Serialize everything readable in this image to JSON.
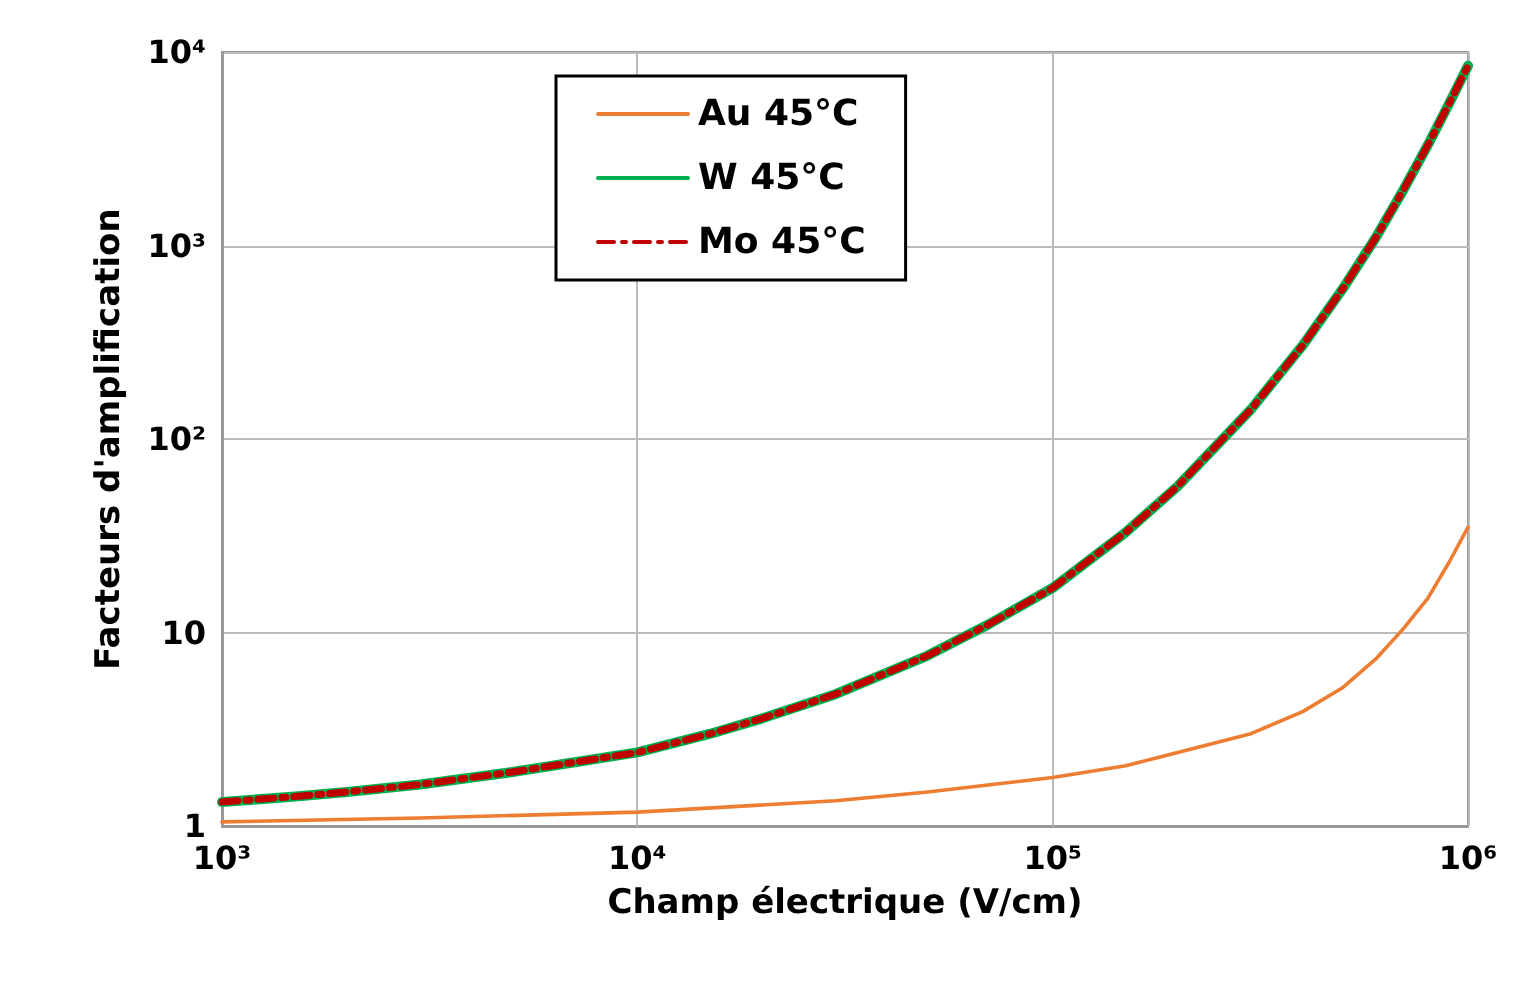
{
  "chart_data": {
    "type": "line",
    "xlabel": "Champ électrique (V/cm)",
    "ylabel": "Facteurs d'amplification",
    "log": "xy",
    "grid": true,
    "legend": "top",
    "xlim": [
      1000,
      1000000
    ],
    "ylim": [
      1,
      10000
    ],
    "xticks": [
      {
        "value": 1000,
        "label": "10³"
      },
      {
        "value": 10000,
        "label": "10⁴"
      },
      {
        "value": 100000,
        "label": "10⁵"
      },
      {
        "value": 1000000,
        "label": "10⁶"
      }
    ],
    "yticks": [
      1,
      10,
      {
        "value": 100,
        "label": "10²"
      },
      {
        "value": 1000,
        "label": "10³"
      },
      {
        "value": 10000,
        "label": "10⁴"
      }
    ],
    "x": [
      1000,
      1500,
      2000,
      3000,
      5000,
      7000,
      10000,
      15000,
      20000,
      30000,
      50000,
      70000,
      100000,
      150000,
      200000,
      300000,
      400000,
      500000,
      600000,
      700000,
      800000,
      900000,
      1000000
    ],
    "series": [
      {
        "name": "Au 45°C",
        "color": "#ed7d31",
        "line_style": "solid",
        "x": [
          1000,
          3000,
          10000,
          30000,
          50000,
          100000,
          150000,
          200000,
          300000,
          400000,
          500000,
          600000,
          700000,
          800000,
          900000,
          1000000
        ],
        "values": [
          1.05,
          1.1,
          1.18,
          1.35,
          1.5,
          1.78,
          2.05,
          2.4,
          3.0,
          3.9,
          5.2,
          7.3,
          10.5,
          15,
          23,
          35
        ]
      },
      {
        "name": "W 45°C",
        "color": "#00b050",
        "line_style": "solid",
        "values": [
          1.33,
          1.42,
          1.5,
          1.64,
          1.9,
          2.13,
          2.4,
          3.0,
          3.6,
          4.8,
          7.6,
          11,
          17,
          33,
          57,
          142,
          305,
          600,
          1100,
          1950,
          3300,
          5400,
          8500
        ]
      },
      {
        "name": "Mo 45°C",
        "color": "#c00000",
        "line_style": "dashed",
        "values": [
          1.33,
          1.42,
          1.5,
          1.64,
          1.9,
          2.13,
          2.4,
          3.0,
          3.6,
          4.8,
          7.6,
          11,
          17,
          33,
          57,
          142,
          305,
          600,
          1100,
          1950,
          3300,
          5400,
          8500
        ]
      }
    ]
  }
}
